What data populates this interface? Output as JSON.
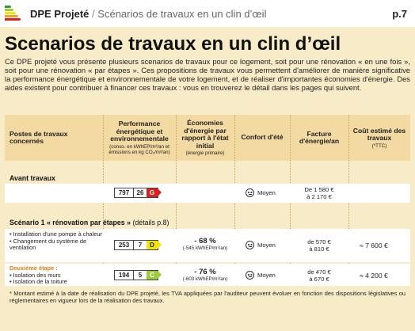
{
  "header": {
    "logo_icon": "dpe-energy-bars-icon",
    "doc_title": "DPE Projeté",
    "separator": "/",
    "section_title": "Scénarios de travaux en un clin d’œil",
    "page_number": "p.7"
  },
  "main": {
    "title": "Scenarios de travaux en un clin d’œil",
    "intro": "Ce DPE projeté vous présente plusieurs scenarios de travaux pour ce logement, soit pour une rénovation « en une fois », soit pour une rénovation « par étapes ». Ces propositions de travaux vous permettent d'améliorer de manière significative la performance énergétique et environnementale de votre logement, et de réaliser d'importantes économies d'énergie. Des aides existent pour contribuer à financer ces travaux : vous en trouverez le détail dans les pages qui suivent."
  },
  "table": {
    "headers": {
      "postes": "Postes de travaux concernés",
      "performance": "Performance énergétique et environnementale",
      "performance_note": "(conso. en kWhEP/m²/an et émissions en kg CO₂/m²/an)",
      "economies": "Économies d'énergie par rapport à l'état initial",
      "economies_note": "(énergie primaire)",
      "confort": "Confort d'été",
      "facture": "Facture d'énergie/an",
      "cout": "Coût estimé des travaux",
      "cout_note": "(*TTC)"
    },
    "avant": {
      "label": "Avant travaux",
      "conso": "797",
      "emissions": "26",
      "classe": "G",
      "classe_color": "#d7221f",
      "confort": "Moyen",
      "facture_line1": "De 1 580 €",
      "facture_line2": "à 2 170 €"
    },
    "scenario1": {
      "label": "Scénario 1 « rénovation par étapes »",
      "label_detail": "(détails p.8)",
      "step1": {
        "items": [
          "• Installation d'une pompe à chaleur",
          "• Changement du système de ventilation"
        ],
        "conso": "253",
        "emissions": "7",
        "classe": "D",
        "classe_color": "#f2e50d",
        "economie_pct": "- 68 %",
        "economie_abs": "(-545 kWhEP/m²/an)",
        "confort": "Moyen",
        "facture_line1": "de 570 €",
        "facture_line2": "à 810 €",
        "cout": "≈ 7 600 €"
      },
      "step2": {
        "title": "Deuxième étape :",
        "items": [
          "• Isolation des murs",
          "• Isolation de la toiture"
        ],
        "conso": "194",
        "emissions": "5",
        "classe": "C",
        "classe_color": "#9ccb3b",
        "economie_pct": "- 76 %",
        "economie_abs": "(-603 kWhEP/m²/an)",
        "confort": "Moyen",
        "facture_line1": "de 470 €",
        "facture_line2": "à 670 €",
        "cout": "≈ 4 200 €"
      }
    },
    "footnote": "* Montant estimé à la date de réalisation du DPE projeté, les TVA appliquées par l'auditeur peuvent évoluer en fonction des dispositions législatives ou réglementaires en vigueur lors de la réalisation des travaux."
  },
  "colors": {
    "accent_orange": "#e07b14",
    "header_band": "#f3d9a2",
    "page_bg": "#f8ecc8"
  }
}
